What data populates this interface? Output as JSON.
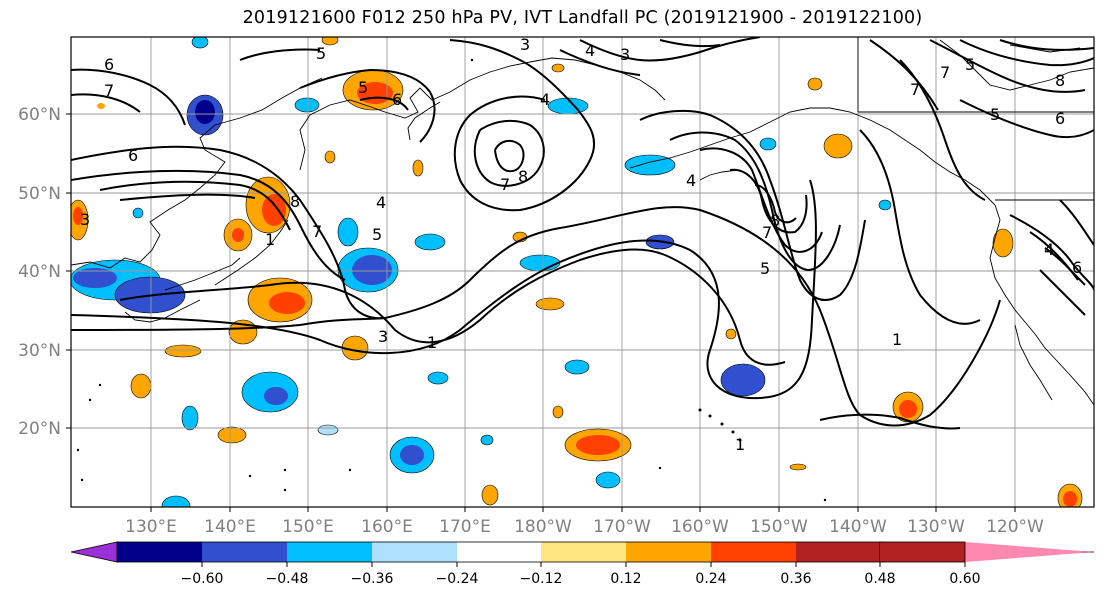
{
  "title": "2019121600 F012 250 hPa PV, IVT Landfall PC (2019121900 - 2019122100)",
  "lon_labels": [
    "130°E",
    "140°E",
    "150°E",
    "160°E",
    "170°E",
    "180°W",
    "170°W",
    "160°W",
    "150°W",
    "140°W",
    "130°W",
    "120°W"
  ],
  "lat_labels": [
    "20°N",
    "30°N",
    "40°N",
    "50°N",
    "60°N"
  ],
  "colorbar": {
    "colors": [
      "#9b30d9",
      "#00008b",
      "#3050d0",
      "#00bfff",
      "#b0e0ff",
      "#ffffff",
      "#ffe680",
      "#ffa500",
      "#ff4000",
      "#b22222",
      "#ff88b0"
    ],
    "tick_labels": [
      "−0.60",
      "−0.48",
      "−0.36",
      "−0.24",
      "−0.12",
      "0.12",
      "0.24",
      "0.36",
      "0.48",
      "0.60"
    ]
  },
  "contour_labels": [
    "6",
    "7",
    "5",
    "3",
    "4",
    "3",
    "6",
    "5",
    "6",
    "8",
    "7",
    "4",
    "5",
    "8",
    "7",
    "4",
    "4",
    "8",
    "7",
    "5",
    "3",
    "1",
    "1",
    "1",
    "3",
    "1",
    "8",
    "7",
    "6",
    "5",
    "4",
    "6",
    "7",
    "5"
  ]
}
